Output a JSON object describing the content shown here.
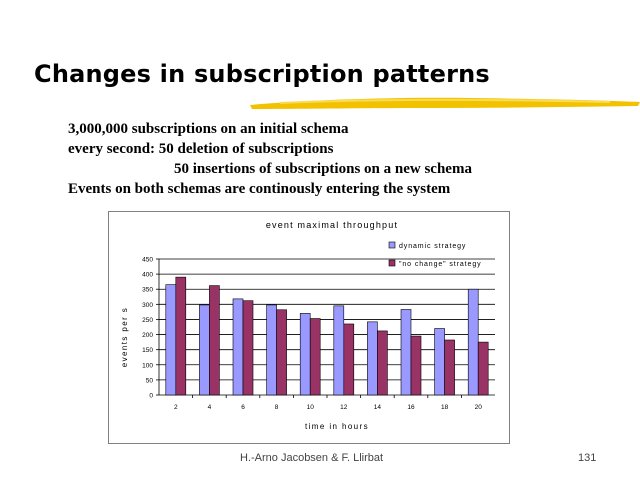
{
  "slide": {
    "title": "Changes in subscription patterns",
    "bullets": [
      "3,000,000 subscriptions on an initial schema",
      "every second: 50 deletion of subscriptions",
      "50 insertions of subscriptions on a new schema",
      "Events on both schemas are  continously  entering the system"
    ],
    "footer_authors": "H.-Arno Jacobsen & F. Llirbat",
    "page_number": "131"
  },
  "colors": {
    "brush": "#F2C200",
    "series_1": "#9999FF",
    "series_2": "#993366"
  },
  "chart_data": {
    "type": "bar",
    "title": "event maximal throughput",
    "xlabel": "time in hours",
    "ylabel": "events per s",
    "categories": [
      "2",
      "4",
      "6",
      "8",
      "10",
      "12",
      "14",
      "16",
      "18",
      "20"
    ],
    "series": [
      {
        "name": "dynamic strategy",
        "values": [
          365,
          298,
          318,
          298,
          270,
          295,
          242,
          283,
          220,
          350
        ]
      },
      {
        "name": "\"no change\" strategy",
        "values": [
          390,
          362,
          312,
          282,
          253,
          235,
          212,
          195,
          182,
          175
        ]
      }
    ],
    "ylim": [
      0,
      450
    ],
    "yticks": [
      0,
      50,
      100,
      150,
      200,
      250,
      300,
      350,
      400,
      450
    ],
    "grid": true,
    "legend": "top-right"
  }
}
